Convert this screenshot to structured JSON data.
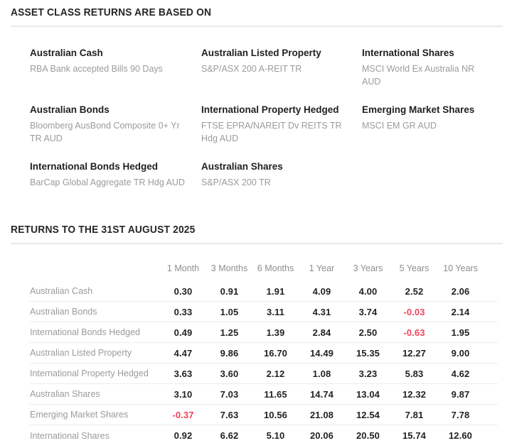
{
  "colors": {
    "title_text": "#262626",
    "asset_name_text": "#212121",
    "asset_index_text": "#9b9b9b",
    "column_header_text": "#8e8e8e",
    "row_label_text": "#9b9b9b",
    "value_text": "#222222",
    "negative_value_text": "#ef445a",
    "section_rule": "#e9e9e9",
    "row_divider": "#ececec",
    "background": "#ffffff"
  },
  "definitions_section": {
    "title": "ASSET CLASS RETURNS ARE BASED ON",
    "items": [
      {
        "name": "Australian Cash",
        "index": "RBA Bank accepted Bills 90 Days"
      },
      {
        "name": "Australian Listed Property",
        "index": "S&P/ASX 200 A-REIT TR"
      },
      {
        "name": "International Shares",
        "index": "MSCI World Ex Australia NR AUD"
      },
      {
        "name": "Australian Bonds",
        "index": "Bloomberg AusBond Composite 0+ Yr TR AUD"
      },
      {
        "name": "International Property Hedged",
        "index": "FTSE EPRA/NAREIT Dv REITS TR Hdg AUD"
      },
      {
        "name": "Emerging Market Shares",
        "index": "MSCI EM GR AUD"
      },
      {
        "name": "International Bonds Hedged",
        "index": "BarCap Global Aggregate TR Hdg AUD"
      },
      {
        "name": "Australian Shares",
        "index": "S&P/ASX 200 TR"
      }
    ]
  },
  "returns_section": {
    "title": "RETURNS TO THE 31ST AUGUST 2025",
    "columns": [
      "1 Month",
      "3 Months",
      "6 Months",
      "1 Year",
      "3 Years",
      "5 Years",
      "10 Years"
    ],
    "rows": [
      {
        "label": "Australian Cash",
        "values": [
          "0.30",
          "0.91",
          "1.91",
          "4.09",
          "4.00",
          "2.52",
          "2.06"
        ]
      },
      {
        "label": "Australian Bonds",
        "values": [
          "0.33",
          "1.05",
          "3.11",
          "4.31",
          "3.74",
          "-0.03",
          "2.14"
        ]
      },
      {
        "label": "International Bonds Hedged",
        "values": [
          "0.49",
          "1.25",
          "1.39",
          "2.84",
          "2.50",
          "-0.63",
          "1.95"
        ]
      },
      {
        "label": "Australian Listed Property",
        "values": [
          "4.47",
          "9.86",
          "16.70",
          "14.49",
          "15.35",
          "12.27",
          "9.00"
        ]
      },
      {
        "label": "International Property Hedged",
        "values": [
          "3.63",
          "3.60",
          "2.12",
          "1.08",
          "3.23",
          "5.83",
          "4.62"
        ]
      },
      {
        "label": "Australian Shares",
        "values": [
          "3.10",
          "7.03",
          "11.65",
          "14.74",
          "13.04",
          "12.32",
          "9.87"
        ]
      },
      {
        "label": "Emerging Market Shares",
        "values": [
          "-0.37",
          "7.63",
          "10.56",
          "21.08",
          "12.54",
          "7.81",
          "7.78"
        ]
      },
      {
        "label": "International Shares",
        "values": [
          "0.92",
          "6.62",
          "5.10",
          "20.06",
          "20.50",
          "15.74",
          "12.60"
        ]
      }
    ]
  }
}
